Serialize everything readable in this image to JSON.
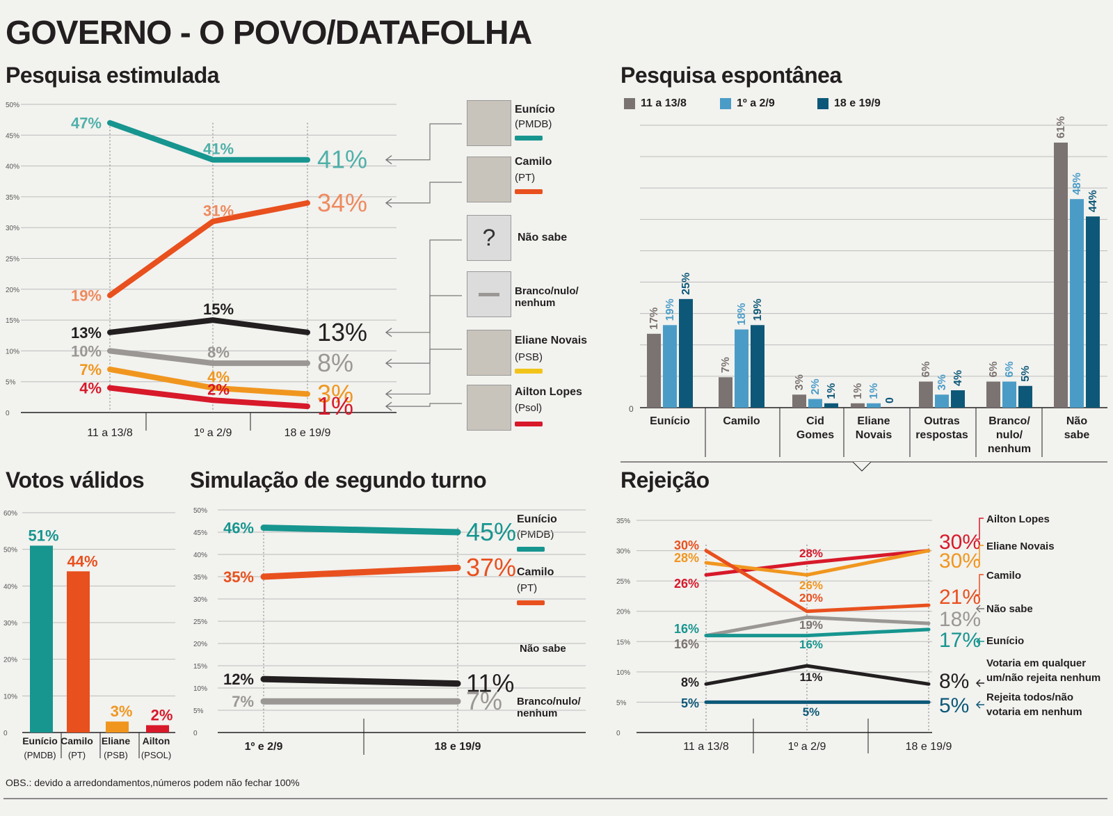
{
  "header": {
    "title": "GOVERNO - O POVO/DATAFOLHA"
  },
  "note": "OBS.: devido a arredondamentos,números podem não fechar 100%",
  "colors": {
    "teal": "#17958f",
    "orange_red": "#e8501e",
    "black": "#231f20",
    "gray": "#9a9795",
    "orange": "#f0961f",
    "red": "#d7192a",
    "yellow": "#f2c41a",
    "bar_gray": "#7a7371",
    "bar_light": "#4a9cc7",
    "bar_dark": "#0d5878"
  },
  "sections": {
    "estimulada": "Pesquisa estimulada",
    "espontanea": "Pesquisa espontânea",
    "validos": "Votos válidos",
    "segundo": "Simulação de segundo turno",
    "rejeicao": "Rejeição"
  },
  "candidates": [
    {
      "name": "Eunício",
      "party": "(PMDB)",
      "color": "#17958f",
      "icon": "photo-icon"
    },
    {
      "name": "Camilo",
      "party": "(PT)",
      "color": "#e8501e",
      "icon": "photo-icon"
    },
    {
      "name": "Não sabe",
      "party": "",
      "color": "",
      "icon": "question-mark-icon",
      "glyph": "?"
    },
    {
      "name": "Branco/nulo/ nenhum",
      "party": "",
      "color": "",
      "icon": "dash-icon"
    },
    {
      "name": "Eliane Novais",
      "party": "(PSB)",
      "color": "#f2c41a",
      "icon": "photo-icon"
    },
    {
      "name": "Ailton Lopes",
      "party": "(Psol)",
      "color": "#d7192a",
      "icon": "photo-icon"
    }
  ],
  "chart_data": [
    {
      "id": "estimulada",
      "type": "line",
      "x": [
        "11 a 13/8",
        "1º a 2/9",
        "18 e 19/9"
      ],
      "ylim": [
        0,
        50
      ],
      "yticks": [
        "0",
        "5%",
        "10%",
        "15%",
        "20%",
        "25%",
        "30%",
        "35%",
        "40%",
        "45%",
        "50%"
      ],
      "series": [
        {
          "name": "Eunício",
          "values": [
            47,
            41,
            41
          ],
          "labels": [
            "47%",
            "41%",
            "41%"
          ],
          "color": "#17958f",
          "labelColor": "#4fb0a9"
        },
        {
          "name": "Camilo",
          "values": [
            19,
            31,
            34
          ],
          "labels": [
            "19%",
            "31%",
            "34%"
          ],
          "color": "#e8501e",
          "labelColor": "#ee8a5e"
        },
        {
          "name": "Não sabe",
          "values": [
            13,
            15,
            13
          ],
          "labels": [
            "13%",
            "15%",
            "13%"
          ],
          "color": "#231f20",
          "labelColor": "#231f20"
        },
        {
          "name": "Branco/nulo/nenhum",
          "values": [
            10,
            8,
            8
          ],
          "labels": [
            "10%",
            "8%",
            "8%"
          ],
          "color": "#9a9795",
          "labelColor": "#9a9795"
        },
        {
          "name": "Eliane Novais",
          "values": [
            7,
            4,
            3
          ],
          "labels": [
            "7%",
            "4%",
            "3%"
          ],
          "color": "#f0961f",
          "labelColor": "#f0961f"
        },
        {
          "name": "Ailton Lopes",
          "values": [
            4,
            2,
            1
          ],
          "labels": [
            "4%",
            "2%",
            "1%"
          ],
          "color": "#d7192a",
          "labelColor": "#d7192a"
        }
      ]
    },
    {
      "id": "espontanea",
      "type": "bar",
      "categories": [
        "Eunício",
        "Camilo",
        "Cid Gomes",
        "Eliane Novais",
        "Outras respostas",
        "Branco/ nulo/ nenhum",
        "Não sabe"
      ],
      "legend": [
        "11 a 13/8",
        "1º a 2/9",
        "18 e 19/9"
      ],
      "legend_position": "top-left",
      "ylim": [
        0,
        65
      ],
      "yticks": [
        "0"
      ],
      "series": [
        {
          "name": "11 a 13/8",
          "values": [
            17,
            7,
            3,
            1,
            6,
            6,
            61
          ],
          "labels": [
            "17%",
            "7%",
            "3%",
            "1%",
            "6%",
            "6%",
            "61%"
          ],
          "color": "#7a7371"
        },
        {
          "name": "1º a 2/9",
          "values": [
            19,
            18,
            2,
            1,
            3,
            6,
            48
          ],
          "labels": [
            "19%",
            "18%",
            "2%",
            "1%",
            "3%",
            "6%",
            "48%"
          ],
          "color": "#4a9cc7"
        },
        {
          "name": "18 e 19/9",
          "values": [
            25,
            19,
            1,
            0,
            4,
            5,
            44
          ],
          "labels": [
            "25%",
            "19%",
            "1%",
            "0",
            "4%",
            "5%",
            "44%"
          ],
          "color": "#0d5878"
        }
      ]
    },
    {
      "id": "validos",
      "type": "bar",
      "categories": [
        "Eunício",
        "Camilo",
        "Eliane",
        "Ailton"
      ],
      "parties": [
        "(PMDB)",
        "(PT)",
        "(PSB)",
        "(PSOL)"
      ],
      "values": [
        51,
        44,
        3,
        2
      ],
      "labels": [
        "51%",
        "44%",
        "3%",
        "2%"
      ],
      "colors": [
        "#17958f",
        "#e8501e",
        "#f0961f",
        "#d7192a"
      ],
      "ylim": [
        0,
        60
      ],
      "yticks": [
        "0",
        "10%",
        "20%",
        "30%",
        "40%",
        "50%",
        "60%"
      ]
    },
    {
      "id": "segundo",
      "type": "line",
      "x": [
        "1º e 2/9",
        "18 e 19/9"
      ],
      "ylim": [
        0,
        50
      ],
      "yticks": [
        "0",
        "5%",
        "10%",
        "15%",
        "20%",
        "25%",
        "30%",
        "35%",
        "40%",
        "45%",
        "50%"
      ],
      "series": [
        {
          "name": "Eunício",
          "values": [
            46,
            45
          ],
          "labels": [
            "46%",
            "45%"
          ],
          "color": "#17958f"
        },
        {
          "name": "Camilo",
          "values": [
            35,
            37
          ],
          "labels": [
            "35%",
            "37%"
          ],
          "color": "#e8501e"
        },
        {
          "name": "Não sabe",
          "values": [
            12,
            11
          ],
          "labels": [
            "12%",
            "11%"
          ],
          "color": "#231f20"
        },
        {
          "name": "Branco/nulo/ nenhum",
          "values": [
            7,
            7
          ],
          "labels": [
            "7%",
            "7%"
          ],
          "color": "#9a9795"
        }
      ],
      "legend": [
        {
          "name": "Eunício",
          "party": "(PMDB)",
          "color": "#17958f"
        },
        {
          "name": "Camilo",
          "party": "(PT)",
          "color": "#e8501e"
        },
        {
          "name": "Não sabe",
          "party": "",
          "color": ""
        },
        {
          "name": "Branco/nulo/ nenhum",
          "party": "",
          "color": ""
        }
      ]
    },
    {
      "id": "rejeicao",
      "type": "line",
      "x": [
        "11 a 13/8",
        "1º a 2/9",
        "18 e 19/9"
      ],
      "ylim": [
        0,
        35
      ],
      "yticks": [
        "0",
        "5%",
        "10%",
        "15%",
        "20%",
        "25%",
        "30%",
        "35%"
      ],
      "series": [
        {
          "name": "Ailton Lopes",
          "values": [
            26,
            28,
            30
          ],
          "labels": [
            "26%",
            "28%",
            "30%"
          ],
          "color": "#d7192a"
        },
        {
          "name": "Eliane Novais",
          "values": [
            28,
            26,
            30
          ],
          "labels": [
            "28%",
            "26%",
            "30%"
          ],
          "color": "#f0961f"
        },
        {
          "name": "Camilo",
          "values": [
            30,
            20,
            21
          ],
          "labels": [
            "30%",
            "20%",
            "21%"
          ],
          "color": "#e8501e"
        },
        {
          "name": "Não sabe",
          "values": [
            16,
            19,
            18
          ],
          "labels": [
            "16%",
            "19%",
            "18%"
          ],
          "color": "#9a9795"
        },
        {
          "name": "Eunício",
          "values": [
            16,
            16,
            17
          ],
          "labels": [
            "16%",
            "16%",
            "17%"
          ],
          "color": "#17958f"
        },
        {
          "name": "Votaria em qualquer um/não rejeita nenhum",
          "values": [
            8,
            11,
            8
          ],
          "labels": [
            "8%",
            "11%",
            "8%"
          ],
          "color": "#231f20"
        },
        {
          "name": "Rejeita todos/não votaria em nenhum",
          "values": [
            5,
            5,
            5
          ],
          "labels": [
            "5%",
            "5%",
            "5%"
          ],
          "color": "#0d5878"
        }
      ]
    }
  ]
}
